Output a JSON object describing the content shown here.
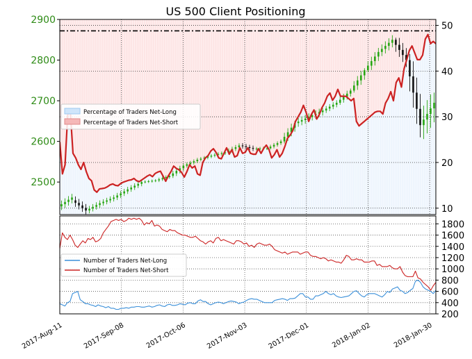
{
  "chart_data": [
    {
      "type": "candlestick+line",
      "title": "US 500 Client Positioning",
      "y_left": {
        "range": [
          2420,
          2900
        ],
        "ticks": [
          2500,
          2600,
          2700,
          2800,
          2900
        ],
        "tick_color": "#2e8b16"
      },
      "y_right": {
        "range": [
          8.6,
          51.3
        ],
        "ticks": [
          10,
          20,
          30,
          40,
          50
        ]
      },
      "grid": true,
      "legend": {
        "position": "left-middle",
        "entries": [
          "Percentage of Traders Net-Long",
          "Percentage of Traders Net-Short"
        ]
      },
      "reference_line": {
        "value": 2872,
        "style": "dash-dot"
      },
      "price_ohlc_weekly": [
        {
          "o": 2440,
          "h": 2478,
          "l": 2428,
          "c": 2462
        },
        {
          "o": 2455,
          "h": 2470,
          "l": 2416,
          "c": 2430
        },
        {
          "o": 2430,
          "h": 2455,
          "l": 2417,
          "c": 2448
        },
        {
          "o": 2448,
          "h": 2470,
          "l": 2435,
          "c": 2462
        },
        {
          "o": 2462,
          "h": 2490,
          "l": 2455,
          "c": 2482
        },
        {
          "o": 2482,
          "h": 2505,
          "l": 2472,
          "c": 2500
        },
        {
          "o": 2500,
          "h": 2510,
          "l": 2492,
          "c": 2504
        },
        {
          "o": 2504,
          "h": 2520,
          "l": 2498,
          "c": 2515
        },
        {
          "o": 2515,
          "h": 2545,
          "l": 2510,
          "c": 2540
        },
        {
          "o": 2540,
          "h": 2560,
          "l": 2535,
          "c": 2555
        },
        {
          "o": 2555,
          "h": 2570,
          "l": 2548,
          "c": 2565
        },
        {
          "o": 2565,
          "h": 2578,
          "l": 2555,
          "c": 2573
        },
        {
          "o": 2573,
          "h": 2598,
          "l": 2568,
          "c": 2590
        },
        {
          "o": 2590,
          "h": 2602,
          "l": 2570,
          "c": 2582
        },
        {
          "o": 2582,
          "h": 2595,
          "l": 2572,
          "c": 2583
        },
        {
          "o": 2583,
          "h": 2605,
          "l": 2580,
          "c": 2600
        },
        {
          "o": 2600,
          "h": 2650,
          "l": 2595,
          "c": 2645
        },
        {
          "o": 2645,
          "h": 2670,
          "l": 2620,
          "c": 2660
        },
        {
          "o": 2660,
          "h": 2682,
          "l": 2635,
          "c": 2676
        },
        {
          "o": 2676,
          "h": 2705,
          "l": 2670,
          "c": 2695
        },
        {
          "o": 2695,
          "h": 2730,
          "l": 2690,
          "c": 2725
        },
        {
          "o": 2725,
          "h": 2780,
          "l": 2720,
          "c": 2775
        },
        {
          "o": 2775,
          "h": 2830,
          "l": 2770,
          "c": 2820
        },
        {
          "o": 2820,
          "h": 2872,
          "l": 2810,
          "c": 2850
        },
        {
          "o": 2850,
          "h": 2855,
          "l": 2760,
          "c": 2800
        },
        {
          "o": 2800,
          "h": 2815,
          "l": 2610,
          "c": 2640
        },
        {
          "o": 2640,
          "h": 2720,
          "l": 2530,
          "c": 2695
        }
      ],
      "series": [
        {
          "name": "Percentage of Traders Net-Short",
          "color": "#cc2222",
          "values": [
            24.5,
            17.5,
            19.5,
            30.5,
            31.0,
            22.0,
            21.0,
            19.5,
            18.5,
            20.0,
            18.0,
            16.5,
            16.0,
            14.0,
            13.5,
            14.2,
            14.3,
            14.4,
            14.7,
            15.1,
            15.3,
            15.0,
            14.9,
            15.4,
            15.7,
            15.9,
            16.1,
            16.2,
            16.5,
            16.0,
            15.8,
            16.2,
            16.6,
            17.0,
            17.3,
            16.9,
            17.6,
            17.9,
            18.1,
            17.0,
            15.9,
            17.1,
            18.0,
            19.2,
            18.7,
            18.4,
            17.8,
            16.8,
            18.0,
            19.5,
            18.8,
            19.2,
            17.5,
            17.2,
            20.0,
            21.0,
            21.5,
            22.5,
            23.0,
            22.2,
            21.0,
            20.8,
            22.0,
            23.2,
            21.8,
            22.8,
            21.2,
            21.5,
            23.2,
            22.0,
            22.2,
            23.2,
            22.0,
            21.8,
            21.8,
            23.0,
            22.0,
            23.1,
            23.8,
            22.8,
            21.0,
            21.7,
            22.8,
            21.2,
            22.0,
            23.5,
            25.3,
            26.0,
            27.0,
            29.0,
            30.0,
            31.0,
            32.5,
            31.0,
            29.0,
            30.5,
            31.5,
            29.5,
            30.5,
            32.0,
            33.0,
            34.5,
            35.2,
            33.6,
            34.5,
            36.0,
            34.5,
            34.5,
            34.5,
            34.0,
            33.5,
            34.0,
            29.0,
            28.0,
            28.5,
            29.0,
            29.5,
            30.0,
            30.5,
            31.0,
            31.2,
            31.2,
            30.6,
            33.0,
            34.0,
            35.5,
            33.5,
            37.5,
            38.5,
            36.5,
            40.5,
            42.5,
            44.5,
            45.5,
            44.0,
            42.5,
            42.5,
            43.5,
            47.0,
            48.0,
            46.0,
            46.5,
            46.0
          ]
        }
      ]
    },
    {
      "type": "line",
      "y_right": {
        "range": [
          200,
          1940
        ],
        "ticks": [
          200,
          400,
          600,
          800,
          1000,
          1200,
          1400,
          1600,
          1800
        ]
      },
      "grid": true,
      "legend": {
        "position": "left-middle",
        "entries": [
          "Number of Traders Net-Long",
          "Number of Traders Net-Short"
        ]
      },
      "x_tick_labels": [
        "2017-Aug-11",
        "2017-Sep-08",
        "2017-Oct-06",
        "2017-Nov-03",
        "2017-Dec-01",
        "2018-Jan-02",
        "2018-Jan-30"
      ],
      "series": [
        {
          "name": "Number of Traders Net-Long",
          "color": "#3a8fd9",
          "values": [
            380,
            360,
            340,
            400,
            420,
            560,
            580,
            600,
            450,
            420,
            380,
            380,
            360,
            350,
            330,
            360,
            340,
            330,
            310,
            330,
            300,
            300,
            280,
            280,
            300,
            300,
            310,
            300,
            320,
            320,
            330,
            330,
            320,
            320,
            330,
            340,
            320,
            330,
            350,
            360,
            340,
            330,
            360,
            370,
            350,
            350,
            360,
            380,
            370,
            360,
            390,
            400,
            380,
            380,
            430,
            450,
            420,
            420,
            380,
            360,
            380,
            400,
            410,
            400,
            380,
            400,
            420,
            430,
            420,
            410,
            380,
            400,
            410,
            440,
            460,
            470,
            460,
            460,
            440,
            420,
            400,
            400,
            400,
            400,
            440,
            450,
            460,
            470,
            460,
            440,
            470,
            470,
            480,
            520,
            560,
            560,
            500,
            500,
            460,
            460,
            520,
            520,
            540,
            560,
            600,
            560,
            540,
            560,
            520,
            500,
            490,
            500,
            510,
            520,
            560,
            600,
            610,
            560,
            520,
            500,
            540,
            560,
            560,
            560,
            540,
            520,
            500,
            540,
            600,
            580,
            640,
            660,
            680,
            620,
            600,
            560,
            580,
            620,
            650,
            780,
            800,
            760,
            680,
            640,
            620,
            600,
            560,
            620
          ]
        },
        {
          "name": "Number of Traders Net-Short",
          "color": "#cc2222",
          "values": [
            1360,
            1640,
            1560,
            1520,
            1600,
            1520,
            1420,
            1380,
            1440,
            1500,
            1460,
            1540,
            1520,
            1560,
            1480,
            1500,
            1540,
            1640,
            1700,
            1760,
            1840,
            1860,
            1880,
            1860,
            1880,
            1840,
            1860,
            1900,
            1880,
            1900,
            1880,
            1900,
            1860,
            1780,
            1820,
            1800,
            1860,
            1760,
            1780,
            1760,
            1700,
            1680,
            1660,
            1700,
            1680,
            1680,
            1640,
            1620,
            1600,
            1600,
            1580,
            1560,
            1560,
            1580,
            1540,
            1500,
            1480,
            1440,
            1480,
            1500,
            1460,
            1540,
            1560,
            1500,
            1520,
            1500,
            1480,
            1460,
            1440,
            1500,
            1500,
            1480,
            1440,
            1460,
            1400,
            1420,
            1380,
            1440,
            1460,
            1440,
            1420,
            1420,
            1440,
            1400,
            1340,
            1320,
            1300,
            1280,
            1300,
            1260,
            1280,
            1300,
            1300,
            1300,
            1260,
            1280,
            1300,
            1300,
            1240,
            1220,
            1220,
            1200,
            1180,
            1200,
            1180,
            1140,
            1160,
            1140,
            1120,
            1120,
            1100,
            1160,
            1240,
            1220,
            1160,
            1160,
            1180,
            1160,
            1160,
            1120,
            1120,
            1120,
            1140,
            1140,
            1060,
            1080,
            1040,
            1040,
            1040,
            1060,
            1020,
            1000,
            1000,
            1040,
            940,
            880,
            860,
            860,
            860,
            960,
            840,
            820,
            760,
            720,
            680,
            620,
            700,
            760
          ]
        }
      ]
    }
  ]
}
